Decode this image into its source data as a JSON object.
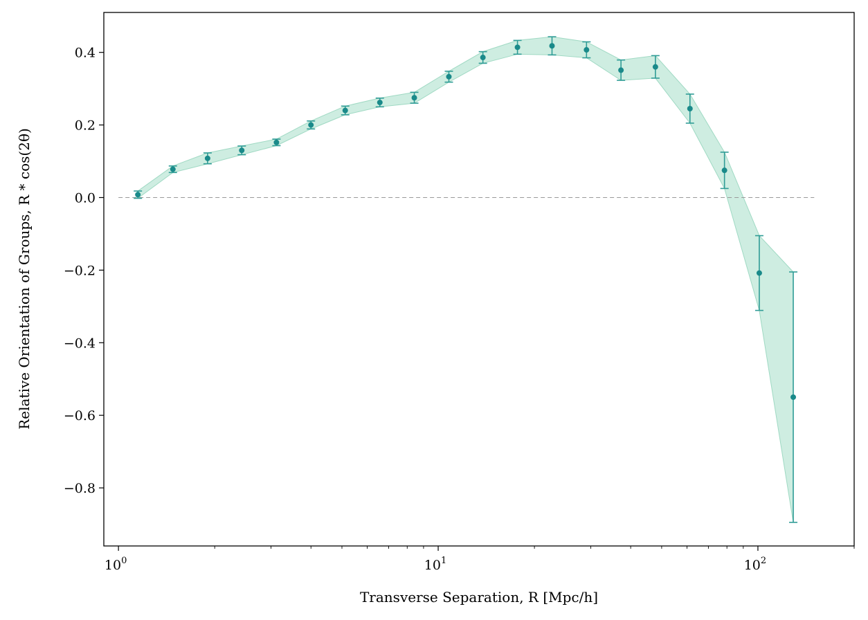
{
  "chart_data": {
    "type": "scatter",
    "xlabel": "Transverse Separation, R [Mpc/h]",
    "ylabel": "Relative Orientation of Groups, R * cos(2θ)",
    "xscale": "log",
    "xlim": [
      0.9,
      200
    ],
    "ylim": [
      -0.96,
      0.51
    ],
    "x_ticks": [
      {
        "value": 1,
        "base": "10",
        "exp": "0"
      },
      {
        "value": 10,
        "base": "10",
        "exp": "1"
      },
      {
        "value": 100,
        "base": "10",
        "exp": "2"
      }
    ],
    "y_ticks": [
      {
        "value": 0.4,
        "label": "0.4"
      },
      {
        "value": 0.2,
        "label": "0.2"
      },
      {
        "value": 0.0,
        "label": "0.0"
      },
      {
        "value": -0.2,
        "label": "−0.2"
      },
      {
        "value": -0.4,
        "label": "−0.4"
      },
      {
        "value": -0.6,
        "label": "−0.6"
      },
      {
        "value": -0.8,
        "label": "−0.8"
      }
    ],
    "reference_line": {
      "y": 0,
      "style": "dashed",
      "x_range": [
        1.0,
        150
      ]
    },
    "grid": false,
    "legend": "none",
    "colors": {
      "points": "#1a8a8a",
      "errorbars": "#2f9c96",
      "band": "#a6dfc9",
      "band_edge": "#9fd9c3",
      "reference": "#999999"
    },
    "series": [
      {
        "x": [
          1.15,
          1.48,
          1.9,
          2.43,
          3.12,
          4.0,
          5.12,
          6.57,
          8.42,
          10.8,
          13.8,
          17.7,
          22.7,
          29.1,
          37.3,
          47.8,
          61.3,
          78.6,
          101,
          129
        ],
        "y": [
          0.008,
          0.078,
          0.108,
          0.13,
          0.152,
          0.2,
          0.24,
          0.262,
          0.275,
          0.333,
          0.386,
          0.414,
          0.418,
          0.407,
          0.351,
          0.36,
          0.245,
          0.075,
          -0.208,
          -0.55
        ],
        "err": [
          0.01,
          0.009,
          0.015,
          0.012,
          0.009,
          0.011,
          0.012,
          0.012,
          0.015,
          0.015,
          0.016,
          0.019,
          0.025,
          0.022,
          0.028,
          0.031,
          0.04,
          0.05,
          0.103,
          0.345
        ]
      }
    ]
  }
}
